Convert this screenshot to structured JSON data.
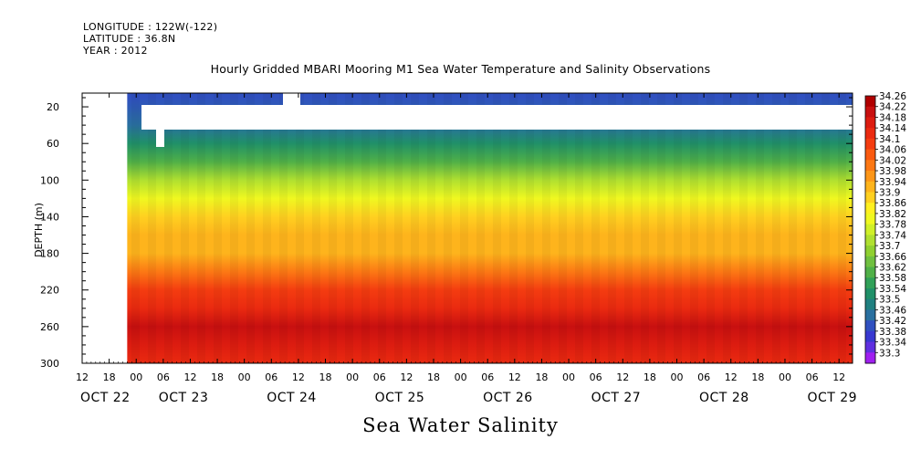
{
  "header": {
    "longitude": "LONGITUDE : 122W(-122)",
    "latitude": "LATITUDE : 36.8N",
    "year": "YEAR : 2012"
  },
  "chart_data": {
    "type": "heatmap",
    "title": "Hourly Gridded MBARI Mooring M1 Sea Water Temperature and Salinity Observations",
    "xlabel": "Sea Water Salinity",
    "ylabel": "DEPTH (m)",
    "y_ticks": [
      20,
      60,
      100,
      140,
      180,
      220,
      260,
      300
    ],
    "ylim": [
      300,
      5
    ],
    "x_hour_ticks": [
      "12",
      "18",
      "00",
      "06",
      "12",
      "18",
      "00",
      "06",
      "12",
      "18",
      "00",
      "06",
      "12",
      "18",
      "00",
      "06",
      "12",
      "18",
      "00",
      "06",
      "12",
      "18",
      "00",
      "06",
      "12",
      "18",
      "00",
      "06",
      "12"
    ],
    "x_day_labels": [
      "OCT 22",
      "OCT 23",
      "OCT 24",
      "OCT 25",
      "OCT 26",
      "OCT 27",
      "OCT 28",
      "OCT 29"
    ],
    "xlim": [
      "2012-10-22T12:00",
      "2012-10-29T15:00"
    ],
    "data_start": "2012-10-22T22:00",
    "colorbar": {
      "labels": [
        "34.26",
        "34.22",
        "34.18",
        "34.14",
        "34.1",
        "34.06",
        "34.02",
        "33.98",
        "33.94",
        "33.9",
        "33.86",
        "33.82",
        "33.78",
        "33.74",
        "33.7",
        "33.66",
        "33.62",
        "33.58",
        "33.54",
        "33.5",
        "33.46",
        "33.42",
        "33.38",
        "33.34",
        "33.3"
      ],
      "colors": [
        "#b00000",
        "#c81010",
        "#dc1c10",
        "#ea2a10",
        "#f43c10",
        "#fa5a10",
        "#fc7814",
        "#fd9618",
        "#feb41c",
        "#ffd020",
        "#fff020",
        "#f0f820",
        "#d0f028",
        "#b0e030",
        "#90d030",
        "#70c040",
        "#50b048",
        "#30a058",
        "#209068",
        "#208080",
        "#2a70a0",
        "#3050c0",
        "#3838d0",
        "#6030e0",
        "#a020f0"
      ]
    },
    "profile": [
      {
        "depth": 10,
        "salinity": 33.44
      },
      {
        "depth": 40,
        "salinity": 33.48
      },
      {
        "depth": 60,
        "salinity": 33.56
      },
      {
        "depth": 80,
        "salinity": 33.64
      },
      {
        "depth": 100,
        "salinity": 33.74
      },
      {
        "depth": 120,
        "salinity": 33.84
      },
      {
        "depth": 140,
        "salinity": 33.92
      },
      {
        "depth": 160,
        "salinity": 33.94
      },
      {
        "depth": 180,
        "salinity": 33.96
      },
      {
        "depth": 200,
        "salinity": 34.02
      },
      {
        "depth": 220,
        "salinity": 34.1
      },
      {
        "depth": 240,
        "salinity": 34.16
      },
      {
        "depth": 260,
        "salinity": 34.22
      },
      {
        "depth": 280,
        "salinity": 34.18
      },
      {
        "depth": 300,
        "salinity": 34.16
      }
    ],
    "grid": false,
    "legend": "colorbar-right"
  }
}
